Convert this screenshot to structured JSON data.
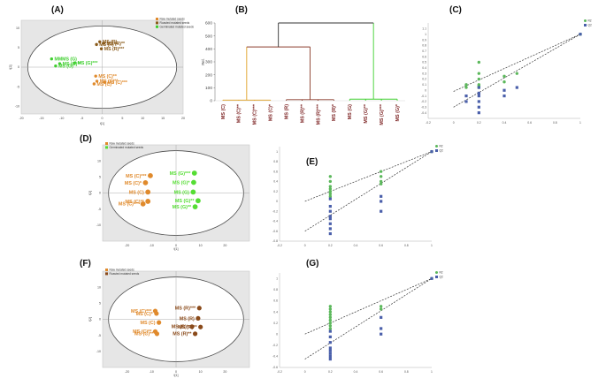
{
  "panel_labels": {
    "a": "(A)",
    "b": "(B)",
    "c": "(C)",
    "d": "(D)",
    "e": "(E)",
    "f": "(F)",
    "g": "(G)"
  },
  "chart_data": [
    {
      "id": "A",
      "type": "scatter",
      "xlabel": "t[1]",
      "ylabel": "t[2]",
      "xlim": [
        -20,
        20
      ],
      "ylim": [
        -12,
        12
      ],
      "xticks": [
        -20,
        -15,
        -10,
        -5,
        0,
        5,
        10,
        15,
        20
      ],
      "yticks": [
        -10,
        -5,
        0,
        5,
        10
      ],
      "legend": {
        "position": "top-right",
        "entries": [
          {
            "name": "Raw mutated seeds",
            "color": "#e08a2c"
          },
          {
            "name": "Roasted mutated seeds",
            "color": "#8a5a1a"
          },
          {
            "name": "Germinated mutated seeds",
            "color": "#3fcf2f"
          }
        ]
      },
      "points": [
        {
          "label": "MS (R)",
          "x": -0.6,
          "y": 6.5,
          "group": "Roasted mutated seeds"
        },
        {
          "label": "MS (R)**",
          "x": 0.4,
          "y": 6.1,
          "group": "Roasted mutated seeds"
        },
        {
          "label": "MS (R)**",
          "x": -1.4,
          "y": 5.8,
          "group": "Roasted mutated seeds"
        },
        {
          "label": "MS (R)***",
          "x": -0.2,
          "y": 4.7,
          "group": "Roasted mutated seeds"
        },
        {
          "label": "MMMS (G)",
          "x": -12.5,
          "y": 2.1,
          "group": "Germinated mutated seeds"
        },
        {
          "label": "MS (G)**",
          "x": -10.5,
          "y": 0.9,
          "group": "Germinated mutated seeds"
        },
        {
          "label": "MS (G)***",
          "x": -6.8,
          "y": 1.1,
          "group": "Germinated mutated seeds"
        },
        {
          "label": "MS (G)",
          "x": -11.5,
          "y": 0.3,
          "group": "Germinated mutated seeds"
        },
        {
          "label": "MS (C)**",
          "x": -1.6,
          "y": -2.3,
          "group": "Raw mutated seeds"
        },
        {
          "label": "MS (C)**",
          "x": -1.3,
          "y": -3.6,
          "group": "Raw mutated seeds"
        },
        {
          "label": "MS (C)***",
          "x": 0.6,
          "y": -3.9,
          "group": "Raw mutated seeds"
        },
        {
          "label": "MS (C)",
          "x": -2.0,
          "y": -4.3,
          "group": "Raw mutated seeds"
        }
      ]
    },
    {
      "id": "B",
      "type": "dendrogram",
      "ylabel": "Rel.",
      "ylim": [
        0,
        600
      ],
      "yticks": [
        0,
        100,
        200,
        300,
        400,
        500,
        600
      ],
      "leaves": [
        "MS (C)",
        "MS (C)**",
        "MS (C)***",
        "MS (C)*",
        "MS (R)",
        "MS (R)**",
        "MS (R)***",
        "MS (R)*",
        "MS (G)",
        "MS (G)**",
        "MS (G)***",
        "MS (G)*"
      ],
      "merges": [
        {
          "height": 5,
          "cluster": "C"
        },
        {
          "height": 8,
          "cluster": "R"
        },
        {
          "height": 12,
          "cluster": "G"
        },
        {
          "height": 415,
          "cluster": "C+R"
        },
        {
          "height": 600,
          "cluster": "all"
        }
      ],
      "colors": {
        "C": "#e0a020",
        "R": "#8a3a2a",
        "G": "#3fcf2f",
        "root": "#333333"
      }
    },
    {
      "id": "C",
      "type": "scatter",
      "subtype": "permutation_test",
      "xlim": [
        -0.2,
        1
      ],
      "ylim": [
        -0.5,
        1.2
      ],
      "xticks": [
        -0.2,
        0,
        0.2,
        0.4,
        0.6,
        0.8,
        1
      ],
      "yticks": [
        -0.4,
        -0.3,
        -0.2,
        -0.1,
        0,
        0.1,
        0.2,
        0.3,
        0.4,
        0.5,
        0.6,
        0.7,
        0.8,
        0.9,
        1,
        1.1
      ],
      "legend": {
        "position": "top-right",
        "entries": [
          {
            "name": "R2",
            "color": "#5cb85c"
          },
          {
            "name": "Q2",
            "color": "#4a5faa"
          }
        ]
      },
      "R2": [
        [
          0.1,
          0.1
        ],
        [
          0.1,
          0.05
        ],
        [
          0.2,
          0.5
        ],
        [
          0.2,
          0.3
        ],
        [
          0.2,
          0.2
        ],
        [
          0.2,
          0.1
        ],
        [
          0.2,
          0.08
        ],
        [
          0.2,
          0.05
        ],
        [
          0.4,
          0.25
        ],
        [
          0.4,
          0.15
        ],
        [
          0.5,
          0.3
        ],
        [
          1,
          1
        ]
      ],
      "Q2": [
        [
          0.1,
          -0.1
        ],
        [
          0.1,
          -0.2
        ],
        [
          0.2,
          0.05
        ],
        [
          0.2,
          -0.05
        ],
        [
          0.2,
          -0.1
        ],
        [
          0.2,
          -0.2
        ],
        [
          0.2,
          -0.3
        ],
        [
          0.2,
          -0.4
        ],
        [
          0.4,
          0.0
        ],
        [
          0.4,
          -0.1
        ],
        [
          0.5,
          0.05
        ],
        [
          1,
          1
        ]
      ],
      "trend_R2": {
        "intercept": -0.02,
        "slope": 1.02
      },
      "trend_Q2": {
        "intercept": -0.3,
        "slope": 1.3
      }
    },
    {
      "id": "D",
      "type": "scatter",
      "xlabel": "t[1]",
      "ylabel": "t[2]",
      "xlim": [
        -30,
        30
      ],
      "ylim": [
        -15,
        15
      ],
      "xticks": [
        -20,
        -10,
        0,
        10,
        20
      ],
      "yticks": [
        -10,
        -5,
        0,
        5,
        10
      ],
      "legend": {
        "position": "top-left",
        "entries": [
          {
            "name": "Raw mutated seeds",
            "color": "#e08a2c"
          },
          {
            "name": "Germinated mutated seeds",
            "color": "#55dd33"
          }
        ]
      },
      "points": [
        {
          "label": "MS (C)***",
          "x": -10.5,
          "y": 5.4,
          "group": "Raw mutated seeds"
        },
        {
          "label": "MS (C)*",
          "x": -12.5,
          "y": 3.2,
          "group": "Raw mutated seeds"
        },
        {
          "label": "MS (C)",
          "x": -11.5,
          "y": 0.3,
          "group": "Raw mutated seeds"
        },
        {
          "label": "MS (C)**",
          "x": -11.5,
          "y": -2.6,
          "group": "Raw mutated seeds"
        },
        {
          "label": "MS (C)***",
          "x": -13.5,
          "y": -3.4,
          "group": "Raw mutated seeds"
        },
        {
          "label": "MS (G)***",
          "x": 7.5,
          "y": 6.2,
          "group": "Germinated mutated seeds"
        },
        {
          "label": "MS (G)*",
          "x": 7.2,
          "y": 3.3,
          "group": "Germinated mutated seeds"
        },
        {
          "label": "MS (G)",
          "x": 7.0,
          "y": 0.3,
          "group": "Germinated mutated seeds"
        },
        {
          "label": "MS (G)**",
          "x": 9.0,
          "y": -2.4,
          "group": "Germinated mutated seeds"
        },
        {
          "label": "MS (G)**",
          "x": 7.8,
          "y": -4.3,
          "group": "Germinated mutated seeds"
        }
      ]
    },
    {
      "id": "E",
      "type": "scatter",
      "subtype": "permutation_test",
      "xlim": [
        -0.2,
        1
      ],
      "ylim": [
        -0.8,
        1.1
      ],
      "xticks": [
        -0.2,
        0,
        0.2,
        0.4,
        0.6,
        0.8,
        1
      ],
      "yticks": [
        -0.8,
        -0.6,
        -0.4,
        -0.2,
        0,
        0.2,
        0.4,
        0.6,
        0.8,
        1
      ],
      "legend": {
        "position": "top-right",
        "entries": [
          {
            "name": "R2",
            "color": "#5cb85c"
          },
          {
            "name": "Q2",
            "color": "#4a5faa"
          }
        ]
      },
      "R2": [
        [
          0.2,
          0.5
        ],
        [
          0.2,
          0.4
        ],
        [
          0.2,
          0.3
        ],
        [
          0.2,
          0.25
        ],
        [
          0.2,
          0.2
        ],
        [
          0.2,
          0.15
        ],
        [
          0.2,
          0.1
        ],
        [
          0.6,
          0.6
        ],
        [
          0.6,
          0.5
        ],
        [
          0.6,
          0.4
        ],
        [
          0.6,
          0.35
        ],
        [
          1,
          1
        ]
      ],
      "Q2": [
        [
          0.2,
          0.05
        ],
        [
          0.2,
          -0.1
        ],
        [
          0.2,
          -0.2
        ],
        [
          0.2,
          -0.3
        ],
        [
          0.2,
          -0.35
        ],
        [
          0.2,
          -0.45
        ],
        [
          0.2,
          -0.55
        ],
        [
          0.2,
          -0.65
        ],
        [
          0.6,
          0.1
        ],
        [
          0.6,
          0.0
        ],
        [
          0.6,
          -0.2
        ],
        [
          1,
          1
        ]
      ],
      "trend_R2": {
        "intercept": 0.0,
        "slope": 1.0
      },
      "trend_Q2": {
        "intercept": -0.6,
        "slope": 1.6
      }
    },
    {
      "id": "F",
      "type": "scatter",
      "xlabel": "t[1]",
      "ylabel": "t[2]",
      "xlim": [
        -30,
        30
      ],
      "ylim": [
        -15,
        15
      ],
      "xticks": [
        -20,
        -10,
        0,
        10,
        20
      ],
      "yticks": [
        -10,
        -5,
        0,
        5,
        10
      ],
      "legend": {
        "position": "top-left",
        "entries": [
          {
            "name": "Raw mutated seeds",
            "color": "#e08a2c"
          },
          {
            "name": "Roasted mutated seeds",
            "color": "#8a4a1a"
          }
        ]
      },
      "points": [
        {
          "label": "MS (C)***",
          "x": -8.5,
          "y": 2.6,
          "group": "Raw mutated seeds"
        },
        {
          "label": "MS (C)*",
          "x": -8.0,
          "y": 1.8,
          "group": "Raw mutated seeds"
        },
        {
          "label": "MS (C)",
          "x": -7.0,
          "y": -1.0,
          "group": "Raw mutated seeds"
        },
        {
          "label": "MS (C)**",
          "x": -8.5,
          "y": -3.8,
          "group": "Raw mutated seeds"
        },
        {
          "label": "MS (C)**",
          "x": -7.8,
          "y": -4.5,
          "group": "Raw mutated seeds"
        },
        {
          "label": "MS (R)***",
          "x": 9.5,
          "y": 3.5,
          "group": "Roasted mutated seeds"
        },
        {
          "label": "MS (R)",
          "x": 9.0,
          "y": 0.3,
          "group": "Roasted mutated seeds"
        },
        {
          "label": "MS (R)*",
          "x": 6.5,
          "y": -2.3,
          "group": "Roasted mutated seeds"
        },
        {
          "label": "MS (R)**",
          "x": 10.0,
          "y": -2.4,
          "group": "Roasted mutated seeds"
        },
        {
          "label": "MS (R)**",
          "x": 7.8,
          "y": -4.5,
          "group": "Roasted mutated seeds"
        }
      ]
    },
    {
      "id": "G",
      "type": "scatter",
      "subtype": "permutation_test",
      "xlim": [
        -0.2,
        1
      ],
      "ylim": [
        -0.6,
        1.1
      ],
      "xticks": [
        -0.2,
        0,
        0.2,
        0.4,
        0.6,
        0.8,
        1
      ],
      "yticks": [
        -0.6,
        -0.4,
        -0.2,
        0,
        0.2,
        0.4,
        0.6,
        0.8,
        1
      ],
      "legend": {
        "position": "top-right",
        "entries": [
          {
            "name": "R2",
            "color": "#5cb85c"
          },
          {
            "name": "Q2",
            "color": "#4a5faa"
          }
        ]
      },
      "R2": [
        [
          0.2,
          0.5
        ],
        [
          0.2,
          0.45
        ],
        [
          0.2,
          0.4
        ],
        [
          0.2,
          0.35
        ],
        [
          0.2,
          0.3
        ],
        [
          0.2,
          0.25
        ],
        [
          0.2,
          0.2
        ],
        [
          0.2,
          0.15
        ],
        [
          0.2,
          0.1
        ],
        [
          0.6,
          0.5
        ],
        [
          0.6,
          0.45
        ],
        [
          1,
          1
        ]
      ],
      "Q2": [
        [
          0.2,
          0.05
        ],
        [
          0.2,
          -0.05
        ],
        [
          0.2,
          -0.15
        ],
        [
          0.2,
          -0.25
        ],
        [
          0.2,
          -0.3
        ],
        [
          0.2,
          -0.35
        ],
        [
          0.2,
          -0.4
        ],
        [
          0.2,
          -0.45
        ],
        [
          0.6,
          0.3
        ],
        [
          0.6,
          0.1
        ],
        [
          0.6,
          0.0
        ],
        [
          1,
          1
        ]
      ],
      "trend_R2": {
        "intercept": 0.0,
        "slope": 1.0
      },
      "trend_Q2": {
        "intercept": -0.45,
        "slope": 1.45
      }
    }
  ]
}
